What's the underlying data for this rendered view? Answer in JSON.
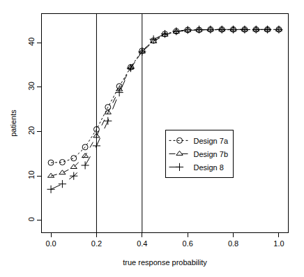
{
  "chart_data": {
    "type": "line",
    "x_label": "true response probability",
    "y_label": "patients",
    "x": [
      0.0,
      0.05,
      0.1,
      0.15,
      0.2,
      0.25,
      0.3,
      0.35,
      0.4,
      0.45,
      0.5,
      0.55,
      0.6,
      0.65,
      0.7,
      0.75,
      0.8,
      0.85,
      0.9,
      0.95,
      1.0
    ],
    "series": [
      {
        "name": "Design 7a",
        "color": "#000000",
        "marker": "circle",
        "line_style": "dot",
        "values": [
          13,
          13.1,
          14,
          16.5,
          20.5,
          25.5,
          30.2,
          34.5,
          38.2,
          40.5,
          42,
          42.6,
          42.9,
          42.9,
          43,
          43,
          43,
          43,
          43,
          43,
          43
        ]
      },
      {
        "name": "Design 7b",
        "color": "#000000",
        "marker": "triangle",
        "line_style": "dash",
        "values": [
          10,
          10.7,
          12,
          14.5,
          19,
          24.3,
          29.5,
          34.4,
          38,
          40.3,
          41.8,
          42.5,
          42.8,
          42.9,
          43,
          43,
          43,
          43,
          43,
          43,
          43
        ]
      },
      {
        "name": "Design 8",
        "color": "#000000",
        "marker": "plus",
        "line_style": "longdash",
        "values": [
          7,
          8.2,
          10,
          12.4,
          16.8,
          22.4,
          28.8,
          34.3,
          38,
          40.8,
          42,
          42.6,
          42.9,
          43,
          43,
          43,
          43,
          43,
          43,
          43,
          43
        ]
      }
    ],
    "vlines": [
      0.2,
      0.4
    ],
    "xlim": [
      -0.04,
      1.04
    ],
    "ylim": [
      -2.7,
      46.5
    ],
    "xticks": [
      {
        "value": 0,
        "label": "0.0"
      },
      {
        "value": 0.2,
        "label": "0.2"
      },
      {
        "value": 0.4,
        "label": "0.4"
      },
      {
        "value": 0.6,
        "label": "0.6"
      },
      {
        "value": 0.8,
        "label": "0.8"
      },
      {
        "value": 1,
        "label": "1.0"
      }
    ],
    "yticks": [
      0,
      10,
      20,
      30,
      40
    ],
    "grid": false,
    "legend": "center"
  }
}
